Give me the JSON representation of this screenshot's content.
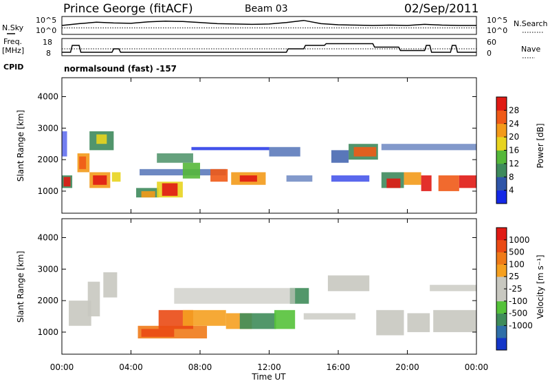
{
  "header": {
    "station": "Prince George (fitACF)",
    "beam": "Beam 03",
    "date": "02/Sep/2011"
  },
  "left_labels": {
    "nsky": "N.Sky",
    "freq_line1": "Freq.",
    "freq_line2": "[MHz]",
    "cpid": "CPID"
  },
  "right_labels": {
    "nsearch": "N.Search",
    "nave": "Nave"
  },
  "cpid_text": "normalsound (fast) -157",
  "chart_data": [
    {
      "type": "line",
      "name": "noise",
      "panel": "noise",
      "series": [
        {
          "name": "N.Sky",
          "style": "solid",
          "x": [
            0,
            1,
            2,
            3,
            4,
            5,
            6,
            7,
            8,
            9,
            10,
            11,
            12,
            13,
            14,
            15,
            16,
            17,
            18,
            19,
            20,
            21,
            22,
            23,
            24
          ],
          "y": [
            2.5,
            3.0,
            3.4,
            3.2,
            3.1,
            3.5,
            3.7,
            3.6,
            3.3,
            3.0,
            2.9,
            2.8,
            2.9,
            3.3,
            3.9,
            3.0,
            2.7,
            2.6,
            2.5,
            2.6,
            2.5,
            2.8,
            2.6,
            2.5,
            2.5
          ]
        },
        {
          "name": "N.Search",
          "style": "dotted",
          "x": [
            0,
            24
          ],
          "y": [
            1.8,
            1.8
          ]
        }
      ],
      "yticks_left": [
        "10^5",
        "10^0"
      ],
      "yticks_right": [
        "10^5",
        "10^0"
      ]
    },
    {
      "type": "line",
      "name": "frequency",
      "panel": "frequency",
      "series": [
        {
          "name": "Freq",
          "style": "solid",
          "x": [
            0,
            0.5,
            0.6,
            1.0,
            1.1,
            2.9,
            3.0,
            3.3,
            3.4,
            4.0,
            4.1,
            13.0,
            13.1,
            14.0,
            14.1,
            15.2,
            15.3,
            18.0,
            18.1,
            19.5,
            19.6,
            21.0,
            21.1,
            21.3,
            21.4,
            22.5,
            22.6,
            22.8,
            22.9,
            24
          ],
          "y": [
            10,
            10,
            14,
            14,
            10,
            10,
            12,
            12,
            10,
            10,
            10,
            10,
            12,
            12,
            14,
            14,
            15,
            15,
            13,
            13,
            11,
            11,
            14,
            14,
            10,
            10,
            14,
            14,
            10,
            10
          ]
        },
        {
          "name": "Nave",
          "style": "dotted",
          "x": [
            0,
            24
          ],
          "y": [
            12,
            12
          ]
        }
      ],
      "yticks_left": [
        "18",
        "8"
      ],
      "yticks_right": [
        "60",
        "0"
      ]
    },
    {
      "type": "heatmap",
      "name": "power",
      "ylabel": "Slant Range [km]",
      "yticks": [
        1000,
        2000,
        3000,
        4000
      ],
      "ylim": [
        300,
        4600
      ],
      "colorbar_label": "Power [dB]",
      "colorbar_ticks": [
        4,
        8,
        12,
        16,
        20,
        24,
        28
      ],
      "colorbar_colors": [
        "#1428e6",
        "#2f55a8",
        "#3e8a5c",
        "#55b83a",
        "#e8d41f",
        "#f39a19",
        "#ef5a17",
        "#e01a14"
      ]
    },
    {
      "type": "heatmap",
      "name": "velocity",
      "ylabel": "Slant Range [km]",
      "yticks": [
        1000,
        2000,
        3000,
        4000
      ],
      "ylim": [
        300,
        4600
      ],
      "xlabel": "Time UT",
      "xticks": [
        "00:00",
        "04:00",
        "08:00",
        "12:00",
        "16:00",
        "20:00",
        "00:00"
      ],
      "colorbar_label": "Velocity [m s⁻¹]",
      "colorbar_ticks": [
        "1000",
        "500",
        "100",
        "25",
        "-25",
        "-100",
        "-500",
        "-1000"
      ],
      "colorbar_colors": [
        "#1436c8",
        "#2f6fa8",
        "#3f8c5a",
        "#55c23a",
        "#c8c8c0",
        "#c8c8c0",
        "#f5a020",
        "#ef7a18",
        "#ea4a14",
        "#e01a14"
      ]
    }
  ]
}
